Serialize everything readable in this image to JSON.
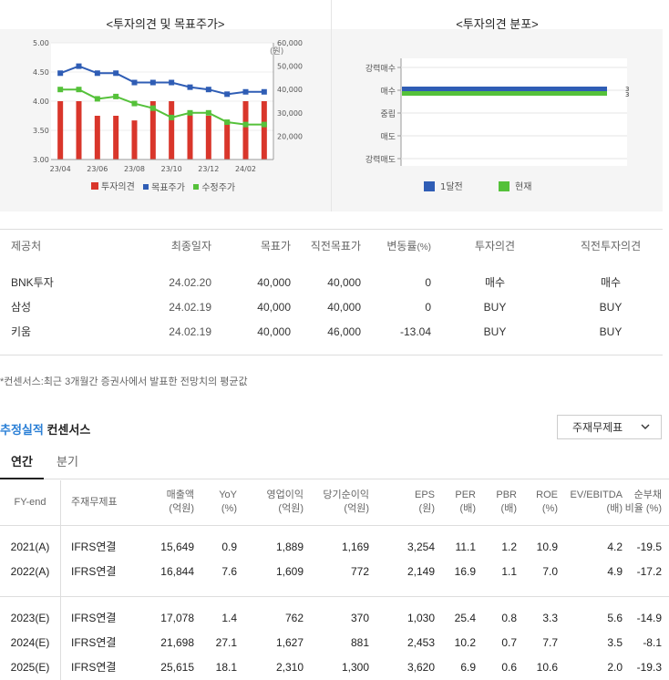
{
  "opinion_chart": {
    "title": "<투자의견 및 목표주가>",
    "unit": "(원)",
    "y_left_ticks": [
      "5.00",
      "4.50",
      "4.00",
      "3.50",
      "3.00"
    ],
    "y_right_ticks": [
      "60,000",
      "50,000",
      "40,000",
      "30,000",
      "20,000"
    ],
    "x_ticks": [
      "23/04",
      "23/06",
      "23/08",
      "23/10",
      "23/12",
      "24/02"
    ],
    "legend": [
      {
        "label": "투자의견",
        "color": "#d9362b"
      },
      {
        "label": "목표주가",
        "color": "#2f5db5"
      },
      {
        "label": "수정주가",
        "color": "#55c13a"
      }
    ]
  },
  "chart_data": [
    {
      "type": "bar+line",
      "title": "<투자의견 및 목표주가>",
      "categories": [
        "23/04",
        "23/05",
        "23/06",
        "23/07",
        "23/08",
        "23/09",
        "23/10",
        "23/11",
        "23/12",
        "24/01",
        "24/02",
        "24/03"
      ],
      "series": [
        {
          "name": "투자의견",
          "type": "bar",
          "axis": "left",
          "values": [
            4.0,
            4.0,
            3.75,
            3.75,
            3.67,
            4.0,
            4.0,
            3.8,
            3.75,
            3.67,
            4.0,
            4.0
          ]
        },
        {
          "name": "목표주가",
          "type": "line",
          "axis": "right",
          "values": [
            47000,
            50000,
            47000,
            47000,
            43000,
            43000,
            43000,
            41000,
            40000,
            38000,
            39000,
            39000
          ]
        },
        {
          "name": "수정주가",
          "type": "line",
          "axis": "right",
          "values": [
            40000,
            40000,
            36000,
            37000,
            34000,
            32000,
            28000,
            30000,
            30000,
            26000,
            25000,
            25000
          ]
        }
      ],
      "ylim_left": [
        3.0,
        5.0
      ],
      "ylim_right": [
        10000,
        60000
      ]
    },
    {
      "type": "bar",
      "orientation": "horizontal",
      "title": "<투자의견 분포>",
      "categories": [
        "강력매수",
        "매수",
        "중립",
        "매도",
        "강력매도"
      ],
      "series": [
        {
          "name": "1달전",
          "values": [
            0,
            3,
            0,
            0,
            0
          ]
        },
        {
          "name": "현재",
          "values": [
            0,
            3,
            0,
            0,
            0
          ]
        }
      ]
    }
  ],
  "dist_chart": {
    "title": "<투자의견 분포>",
    "categories": [
      "강력매수",
      "매수",
      "중립",
      "매도",
      "강력매도"
    ],
    "value_label": "3",
    "legend": [
      {
        "label": "1달전",
        "color": "#2f5db5"
      },
      {
        "label": "현재",
        "color": "#55c13a"
      }
    ]
  },
  "opinions": {
    "headers": [
      "제공처",
      "최종일자",
      "목표가",
      "직전목표가",
      "변동률",
      "(%)",
      "투자의견",
      "직전투자의견"
    ],
    "rows": [
      {
        "provider": "BNK투자",
        "date": "24.02.20",
        "target": "40,000",
        "prev_target": "40,000",
        "change": "0",
        "opinion": "매수",
        "prev_opinion": "매수"
      },
      {
        "provider": "삼성",
        "date": "24.02.19",
        "target": "40,000",
        "prev_target": "40,000",
        "change": "0",
        "opinion": "BUY",
        "prev_opinion": "BUY"
      },
      {
        "provider": "키움",
        "date": "24.02.19",
        "target": "40,000",
        "prev_target": "46,000",
        "change": "-13.04",
        "opinion": "BUY",
        "prev_opinion": "BUY"
      }
    ]
  },
  "footnote": "*컨센서스:최근 3개월간 증권사에서 발표한 전망치의 평균값",
  "estimates": {
    "title_accent": "추정실적",
    "title_rest": "컨센서스",
    "dropdown_value": "주재무제표",
    "tabs": [
      "연간",
      "분기"
    ],
    "headers": [
      [
        "FY-end",
        ""
      ],
      [
        "주재무제표",
        ""
      ],
      [
        "매출액",
        "(억원)"
      ],
      [
        "YoY",
        "(%)"
      ],
      [
        "영업이익",
        "(억원)"
      ],
      [
        "당기순이익",
        "(억원)"
      ],
      [
        "EPS",
        "(원)"
      ],
      [
        "PER",
        "(배)"
      ],
      [
        "PBR",
        "(배)"
      ],
      [
        "ROE",
        "(%)"
      ],
      [
        "EV/EBITDA",
        "(배)"
      ],
      [
        "순부채",
        "비율 (%)"
      ]
    ],
    "rows": [
      [
        "2021(A)",
        "IFRS연결",
        "15,649",
        "0.9",
        "1,889",
        "1,169",
        "3,254",
        "11.1",
        "1.2",
        "10.9",
        "4.2",
        "-19.5"
      ],
      [
        "2022(A)",
        "IFRS연결",
        "16,844",
        "7.6",
        "1,609",
        "772",
        "2,149",
        "16.9",
        "1.1",
        "7.0",
        "4.9",
        "-17.2"
      ],
      [
        "2023(E)",
        "IFRS연결",
        "17,078",
        "1.4",
        "762",
        "370",
        "1,030",
        "25.4",
        "0.8",
        "3.3",
        "5.6",
        "-14.9"
      ],
      [
        "2024(E)",
        "IFRS연결",
        "21,698",
        "27.1",
        "1,627",
        "881",
        "2,453",
        "10.2",
        "0.7",
        "7.7",
        "3.5",
        "-8.1"
      ],
      [
        "2025(E)",
        "IFRS연결",
        "25,615",
        "18.1",
        "2,310",
        "1,300",
        "3,620",
        "6.9",
        "0.6",
        "10.6",
        "2.0",
        "-19.3"
      ]
    ]
  }
}
